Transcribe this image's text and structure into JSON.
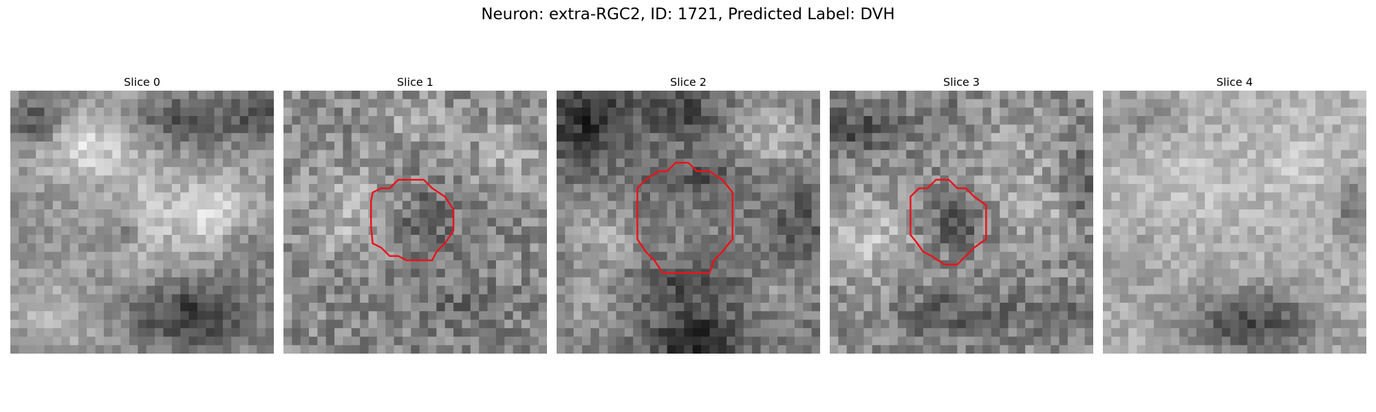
{
  "figure": {
    "title": "Neuron: extra-RGC2, ID: 1721, Predicted Label: DVH"
  },
  "slices": [
    {
      "title": "Slice 0",
      "has_contour": false
    },
    {
      "title": "Slice 1",
      "has_contour": true
    },
    {
      "title": "Slice 2",
      "has_contour": true
    },
    {
      "title": "Slice 3",
      "has_contour": true
    },
    {
      "title": "Slice 4",
      "has_contour": false
    }
  ],
  "colors": {
    "contour": "#e8141c"
  }
}
